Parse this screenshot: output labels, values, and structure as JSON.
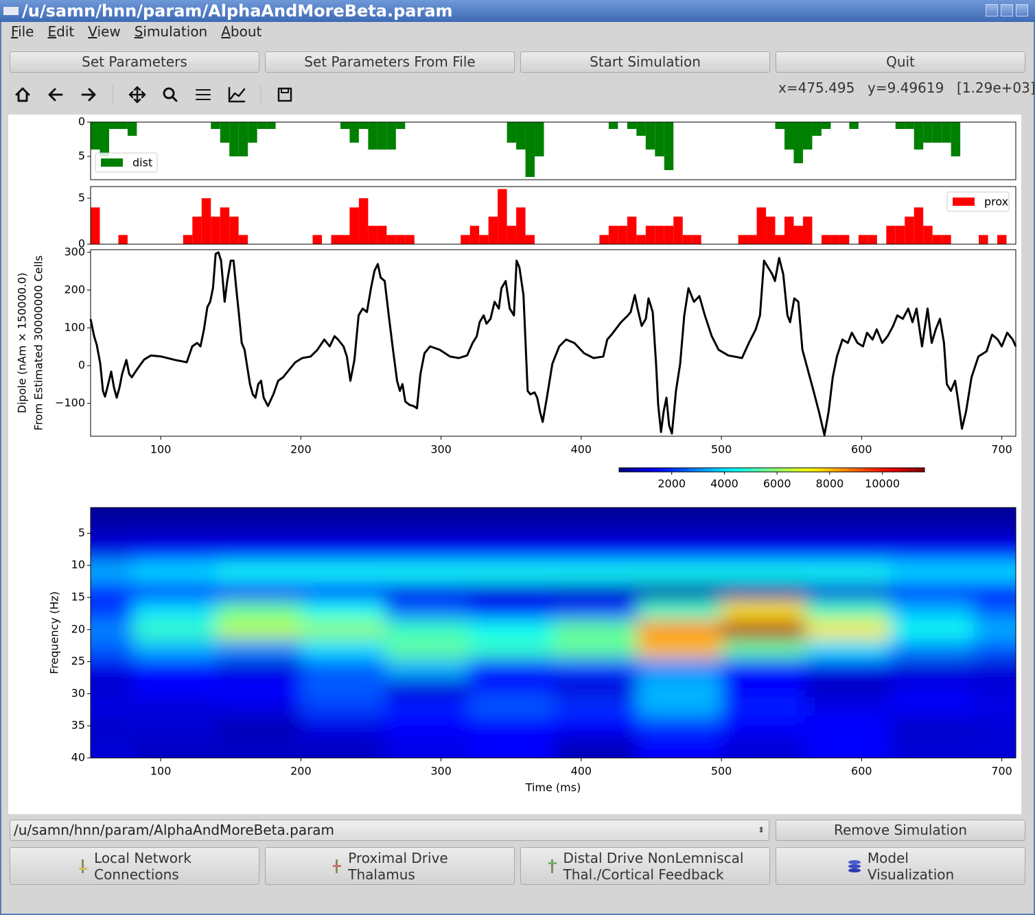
{
  "window": {
    "title": "/u/samn/hnn/param/AlphaAndMoreBeta.param"
  },
  "menu": [
    "File",
    "Edit",
    "View",
    "Simulation",
    "About"
  ],
  "buttons": [
    "Set Parameters",
    "Set Parameters From File",
    "Start Simulation",
    "Quit"
  ],
  "status": {
    "x": "x=475.495",
    "y": "y=9.49619",
    "value": "[1.29e+03]"
  },
  "chart_data": [
    {
      "type": "histogram",
      "xlim": [
        50,
        710
      ],
      "ylim": [
        8.4,
        0
      ],
      "yticks": [
        0,
        5
      ],
      "legend": "lower left",
      "bins": [
        50,
        56.6,
        63.2,
        69.8,
        76.4,
        83,
        89.6,
        96.2,
        102.8,
        109.4,
        116,
        122.6,
        129.2,
        135.8,
        142.4,
        149,
        155.6,
        162.2,
        168.8,
        175.4,
        182,
        188.6,
        195.2,
        201.8,
        208.4,
        215,
        221.6,
        228.2,
        234.8,
        241.4,
        248,
        254.6,
        261.2,
        267.8,
        274.4,
        281,
        287.6,
        294.2,
        300.8,
        307.4,
        314,
        320.6,
        327.2,
        333.8,
        340.4,
        347,
        353.6,
        360.2,
        366.8,
        373.4,
        380,
        386.6,
        393.2,
        399.8,
        406.4,
        413,
        419.6,
        426.2,
        432.8,
        439.4,
        446,
        452.6,
        459.2,
        465.8,
        472.4,
        479,
        485.6,
        492.2,
        498.8,
        505.4,
        512,
        518.6,
        525.2,
        531.8,
        538.4,
        545,
        551.6,
        558.2,
        564.8,
        571.4,
        578,
        584.6,
        591.2,
        597.8,
        604.4,
        611,
        617.6,
        624.2,
        630.8,
        637.4,
        644,
        650.6,
        657.2,
        663.8,
        670.4,
        677,
        683.6,
        690.2,
        696.8,
        703.4,
        710
      ],
      "series": [
        {
          "name": "dist",
          "color": "#008000",
          "values": [
            4,
            5,
            1,
            1,
            2,
            0,
            0,
            0,
            0,
            0,
            0,
            0,
            0,
            1,
            3,
            5,
            5,
            3,
            1,
            1,
            0,
            0,
            0,
            0,
            0,
            0,
            0,
            1,
            3,
            1,
            4,
            4,
            4,
            1,
            0,
            0,
            0,
            0,
            0,
            0,
            0,
            0,
            0,
            0,
            0,
            3,
            4,
            8,
            5,
            0,
            0,
            0,
            0,
            0,
            0,
            0,
            1,
            0,
            1,
            2,
            4,
            5,
            7,
            0,
            0,
            0,
            0,
            0,
            0,
            0,
            0,
            0,
            0,
            0,
            1,
            4,
            6,
            4,
            2,
            1,
            0,
            0,
            1,
            0,
            0,
            0,
            0,
            1,
            1,
            4,
            3,
            3,
            3,
            5,
            0,
            0,
            0,
            0,
            0,
            0
          ]
        }
      ]
    },
    {
      "type": "histogram",
      "xlim": [
        50,
        710
      ],
      "ylim": [
        0,
        6.27
      ],
      "yticks": [
        0,
        5
      ],
      "legend": "upper right",
      "bins": [
        50,
        56.6,
        63.2,
        69.8,
        76.4,
        83,
        89.6,
        96.2,
        102.8,
        109.4,
        116,
        122.6,
        129.2,
        135.8,
        142.4,
        149,
        155.6,
        162.2,
        168.8,
        175.4,
        182,
        188.6,
        195.2,
        201.8,
        208.4,
        215,
        221.6,
        228.2,
        234.8,
        241.4,
        248,
        254.6,
        261.2,
        267.8,
        274.4,
        281,
        287.6,
        294.2,
        300.8,
        307.4,
        314,
        320.6,
        327.2,
        333.8,
        340.4,
        347,
        353.6,
        360.2,
        366.8,
        373.4,
        380,
        386.6,
        393.2,
        399.8,
        406.4,
        413,
        419.6,
        426.2,
        432.8,
        439.4,
        446,
        452.6,
        459.2,
        465.8,
        472.4,
        479,
        485.6,
        492.2,
        498.8,
        505.4,
        512,
        518.6,
        525.2,
        531.8,
        538.4,
        545,
        551.6,
        558.2,
        564.8,
        571.4,
        578,
        584.6,
        591.2,
        597.8,
        604.4,
        611,
        617.6,
        624.2,
        630.8,
        637.4,
        644,
        650.6,
        657.2,
        663.8,
        670.4,
        677,
        683.6,
        690.2,
        696.8,
        703.4,
        710
      ],
      "series": [
        {
          "name": "prox",
          "color": "#ff0000",
          "values": [
            4,
            0,
            0,
            1,
            0,
            0,
            0,
            0,
            0,
            0,
            1,
            3,
            5,
            3,
            4,
            3,
            1,
            0,
            0,
            0,
            0,
            0,
            0,
            0,
            1,
            0,
            1,
            1,
            4,
            5,
            2,
            2,
            1,
            1,
            1,
            0,
            0,
            0,
            0,
            0,
            1,
            2,
            1,
            3,
            6,
            2,
            4,
            1,
            0,
            0,
            0,
            0,
            0,
            0,
            0,
            1,
            2,
            2,
            3,
            1,
            2,
            2,
            2,
            3,
            1,
            1,
            0,
            0,
            0,
            0,
            1,
            1,
            4,
            3,
            1,
            3,
            2,
            3,
            0,
            1,
            1,
            1,
            0,
            1,
            1,
            0,
            2,
            2,
            3,
            4,
            2,
            1,
            1,
            0,
            0,
            0,
            1,
            0,
            1,
            0
          ]
        }
      ]
    },
    {
      "type": "line",
      "xlim": [
        50,
        710
      ],
      "ylim": [
        -187,
        307
      ],
      "ylabel": [
        "Dipole (nAm × 150000.0)",
        "From Estimated 30000000 Cells"
      ],
      "xticks": [
        100,
        200,
        300,
        400,
        500,
        600,
        700
      ],
      "yticks": [
        {
          "value": -100,
          "label": "−100"
        },
        0,
        100,
        200,
        300
      ],
      "x": [
        50,
        52.5,
        54.4,
        56.9,
        58.8,
        60.3,
        62.3,
        64.7,
        66.7,
        68.6,
        70.6,
        72.5,
        75.5,
        77.5,
        79.4,
        83.3,
        88.2,
        93.1,
        100.5,
        110.3,
        118.6,
        122.5,
        126,
        128.4,
        130.9,
        133.3,
        135.3,
        137.3,
        139.2,
        141.2,
        143.1,
        145.6,
        147.5,
        150,
        152,
        153.9,
        155.9,
        157.8,
        159.8,
        161.8,
        163.7,
        165.7,
        167.6,
        169.6,
        171.6,
        173.5,
        176.5,
        180.4,
        183.8,
        187.3,
        191.2,
        196.1,
        201,
        206.9,
        211.8,
        216.7,
        220.6,
        224,
        226.5,
        230.4,
        232.8,
        235.3,
        238.2,
        241.2,
        244.1,
        247.1,
        250,
        252.5,
        254.9,
        256.9,
        259.8,
        262.7,
        265.7,
        268.6,
        270.6,
        272.5,
        274.5,
        277.5,
        280.4,
        282.8,
        285.3,
        288.2,
        292.2,
        299,
        306.4,
        312.7,
        318.6,
        322.5,
        325.5,
        327.5,
        330.4,
        332.4,
        335.3,
        338.2,
        341.2,
        343.1,
        346.1,
        349,
        352,
        353.9,
        355.9,
        358.8,
        361.8,
        363.7,
        366.7,
        368.6,
        370.6,
        372.5,
        375.5,
        379.4,
        384.3,
        389.2,
        395.1,
        402,
        408.8,
        415.7,
        418.6,
        421.6,
        424.5,
        428.4,
        433.3,
        435.3,
        438.2,
        440.2,
        443.1,
        446.1,
        448,
        451,
        453.4,
        454.9,
        456.9,
        458.8,
        460.8,
        462.7,
        464.7,
        467.6,
        470.6,
        473.5,
        476.5,
        480.4,
        484.3,
        488.2,
        493.1,
        498,
        504.9,
        514.7,
        519.6,
        524.5,
        527.5,
        530.4,
        533.3,
        536.3,
        538.2,
        541.2,
        544.1,
        547.1,
        549,
        552,
        554.9,
        557.8,
        561.8,
        565.7,
        569.6,
        573.5,
        576.5,
        579.4,
        582.4,
        586.3,
        590.2,
        593.1,
        597.1,
        601,
        603.9,
        607.8,
        610.8,
        614.7,
        618.6,
        622.5,
        625.5,
        629.4,
        633.3,
        636.3,
        639.2,
        643.1,
        647.1,
        650,
        652.9,
        655.9,
        658.8,
        660.8,
        663.7,
        666.7,
        668.6,
        671.6,
        674.5,
        678.4,
        683.3,
        689.2,
        693.1,
        697.1,
        700,
        703.9,
        707.8,
        710
      ],
      "series": [
        {
          "color": "#000000",
          "values": [
            123,
            78,
            55,
            5,
            -67,
            -82,
            -53,
            -16,
            -58,
            -85,
            -58,
            -22,
            15,
            -22,
            -31,
            -9,
            16,
            27,
            24,
            15,
            9,
            51,
            60,
            51,
            96,
            155,
            169,
            205,
            296,
            300,
            278,
            169,
            224,
            278,
            278,
            205,
            133,
            60,
            42,
            -4,
            -49,
            -76,
            -85,
            -49,
            -40,
            -85,
            -107,
            -76,
            -40,
            -31,
            -13,
            9,
            20,
            24,
            42,
            69,
            51,
            78,
            69,
            51,
            24,
            -40,
            15,
            133,
            151,
            142,
            205,
            251,
            269,
            233,
            224,
            133,
            42,
            -40,
            -67,
            -49,
            -95,
            -104,
            -107,
            -113,
            -22,
            33,
            51,
            42,
            24,
            20,
            27,
            60,
            78,
            115,
            133,
            111,
            124,
            169,
            151,
            205,
            224,
            151,
            133,
            278,
            260,
            187,
            -67,
            -76,
            -71,
            -85,
            -122,
            -149,
            -85,
            5,
            51,
            69,
            60,
            33,
            20,
            24,
            69,
            82,
            96,
            115,
            133,
            142,
            187,
            151,
            105,
            124,
            178,
            142,
            5,
            -104,
            -176,
            -122,
            -85,
            -158,
            -180,
            -67,
            5,
            133,
            205,
            169,
            184,
            133,
            78,
            42,
            27,
            20,
            60,
            96,
            133,
            278,
            260,
            242,
            224,
            285,
            242,
            133,
            115,
            178,
            169,
            42,
            -13,
            -67,
            -122,
            -184,
            -122,
            -31,
            24,
            69,
            60,
            87,
            60,
            51,
            87,
            69,
            96,
            60,
            78,
            105,
            133,
            124,
            151,
            115,
            151,
            51,
            151,
            60,
            96,
            124,
            60,
            -49,
            -67,
            -40,
            -85,
            -167,
            -122,
            -31,
            24,
            38,
            82,
            69,
            51,
            87,
            69,
            51
          ]
        }
      ]
    },
    {
      "type": "heatmap",
      "xlim": [
        50,
        710
      ],
      "ylim": [
        40,
        1
      ],
      "colormap": "jet",
      "xlabel": "Time (ms)",
      "ylabel": "Frequency (Hz)",
      "xticks": [
        100,
        200,
        300,
        400,
        500,
        600,
        700
      ],
      "yticks": [
        5,
        10,
        15,
        20,
        25,
        30,
        35,
        40
      ],
      "clim": [
        0,
        11600
      ],
      "colorbar_ticks": [
        2000,
        4000,
        6000,
        8000,
        10000
      ],
      "x": [
        50,
        110,
        170,
        230,
        290,
        350,
        410,
        470,
        530,
        590,
        650,
        710
      ],
      "y": [
        2,
        5,
        8,
        11,
        14,
        17,
        20,
        23,
        26,
        29,
        32,
        35,
        38
      ],
      "z": [
        [
          300,
          300,
          300,
          300,
          300,
          300,
          300,
          300,
          300,
          300,
          300,
          300
        ],
        [
          700,
          700,
          700,
          700,
          700,
          700,
          700,
          700,
          700,
          700,
          700,
          700
        ],
        [
          1200,
          1500,
          1500,
          1500,
          1500,
          1500,
          1500,
          1500,
          1500,
          1500,
          1500,
          1500
        ],
        [
          3500,
          4000,
          4500,
          4500,
          4500,
          4500,
          4500,
          4500,
          4500,
          4500,
          4000,
          4000
        ],
        [
          2000,
          1800,
          1500,
          1500,
          1200,
          1000,
          800,
          500,
          600,
          1000,
          1500,
          1500
        ],
        [
          2000,
          4000,
          5500,
          4500,
          2500,
          1500,
          2000,
          5000,
          7500,
          5000,
          3500,
          2500
        ],
        [
          3000,
          5000,
          6500,
          6000,
          5000,
          4500,
          5500,
          8500,
          11000,
          7500,
          4500,
          3500
        ],
        [
          2500,
          3500,
          3000,
          4000,
          5500,
          5000,
          5500,
          8000,
          5500,
          4000,
          3000,
          2500
        ],
        [
          1200,
          1500,
          1000,
          2500,
          3500,
          1500,
          2000,
          3000,
          1500,
          1200,
          1000,
          1000
        ],
        [
          800,
          1500,
          1500,
          2500,
          1000,
          1800,
          1000,
          3500,
          1500,
          700,
          1200,
          1000
        ],
        [
          1200,
          1000,
          1200,
          2200,
          1800,
          2500,
          2000,
          3500,
          1800,
          1200,
          1500,
          1200
        ],
        [
          800,
          1000,
          600,
          1200,
          1500,
          1500,
          1500,
          2000,
          1500,
          1500,
          800,
          1000
        ],
        [
          1000,
          800,
          800,
          800,
          1200,
          1500,
          700,
          1500,
          1000,
          1500,
          1000,
          1000
        ]
      ]
    }
  ],
  "simulation_select": "/u/samn/hnn/param/AlphaAndMoreBeta.param",
  "remove_button": "Remove Simulation",
  "panel_buttons": [
    [
      "Local Network",
      "Connections"
    ],
    [
      "Proximal Drive",
      "Thalamus"
    ],
    [
      "Distal Drive NonLemniscal",
      "Thal./Cortical Feedback"
    ],
    [
      "Model",
      "Visualization"
    ]
  ]
}
